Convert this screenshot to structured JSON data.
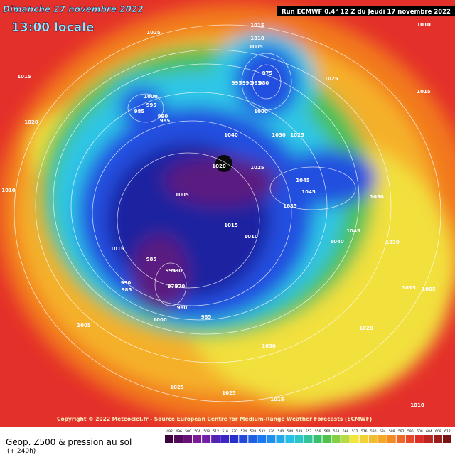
{
  "header": {
    "title": "Dimanche 27 novembre 2022",
    "subtitle": "13:00 locale",
    "run": "Run ECMWF 0.4° 12 Z du Jeudi 17 novembre 2022"
  },
  "map": {
    "isobar_labels": [
      1015,
      1020,
      1010,
      1025,
      1015,
      1010,
      1005,
      995,
      990,
      985,
      980,
      975,
      1000,
      1025,
      1015,
      1010,
      1000,
      995,
      985,
      990,
      985,
      1040,
      1030,
      1025,
      1020,
      1025,
      1045,
      1045,
      1035,
      1050,
      1045,
      1040,
      1030,
      1005,
      1015,
      1010,
      1015,
      985,
      995,
      990,
      975,
      970,
      980,
      1000,
      990,
      985,
      985,
      1005,
      1020,
      1030,
      1025,
      1025,
      1015,
      1010,
      1015,
      1005
    ]
  },
  "footer": {
    "copyright": "Copyright © 2022 Meteociel.fr - Source European Centre for Medium-Range Weather Forecasts (ECMWF)",
    "product": "Geop. Z500 & pression au sol",
    "lead": "(+ 240h)"
  },
  "legend": {
    "scale": [
      492,
      496,
      500,
      504,
      508,
      512,
      516,
      520,
      524,
      528,
      532,
      536,
      540,
      544,
      548,
      552,
      556,
      560,
      564,
      568,
      572,
      576,
      580,
      584,
      588,
      592,
      596,
      600,
      604,
      608,
      612
    ]
  }
}
